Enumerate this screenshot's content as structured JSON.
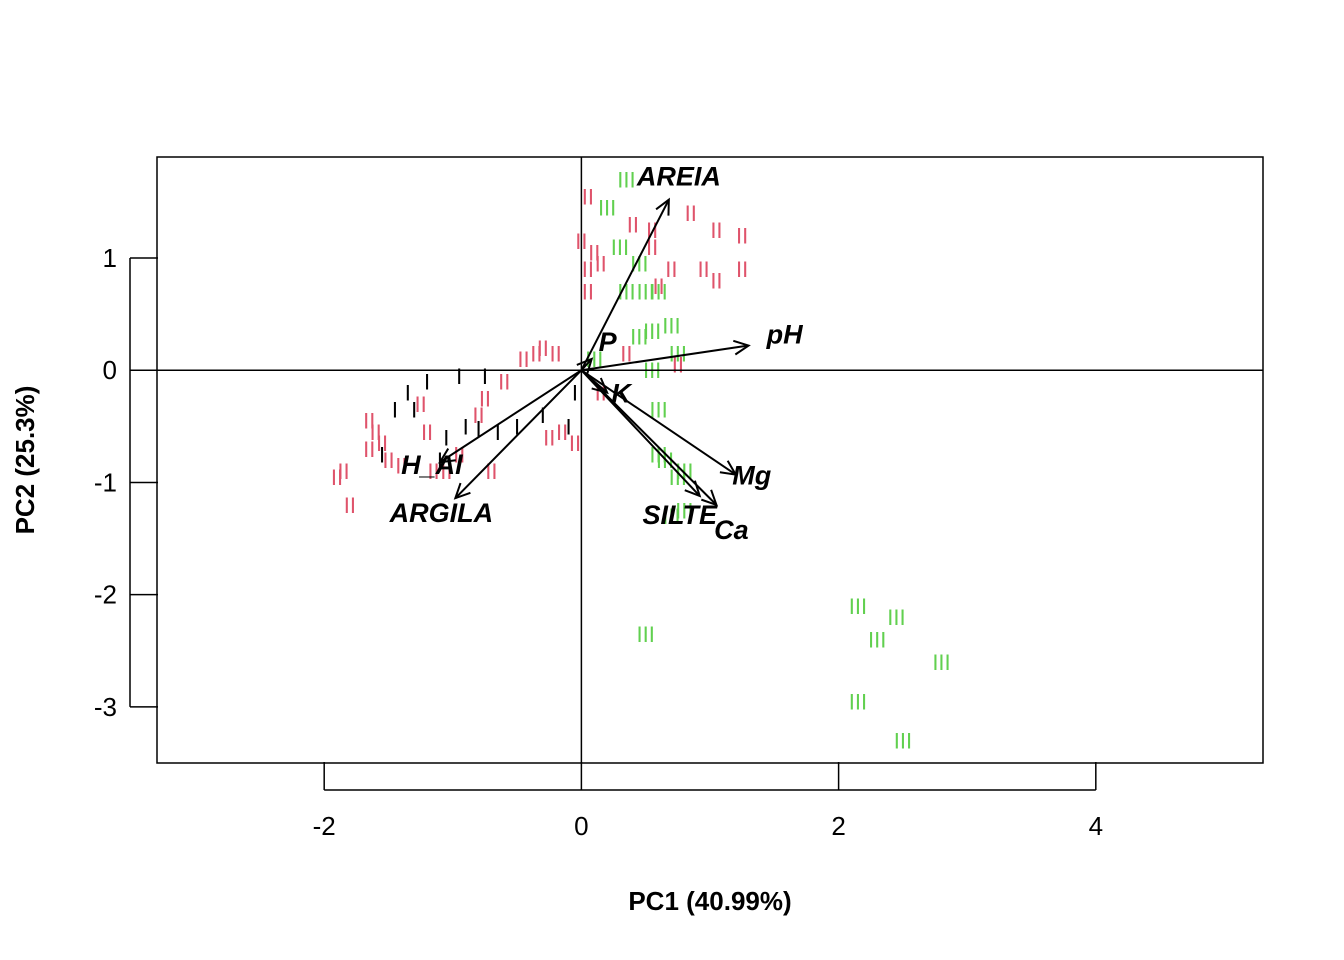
{
  "chart_data": {
    "type": "scatter",
    "subtype": "pca-biplot",
    "title": "",
    "xlabel": "PC1 (40.99%)",
    "ylabel": "PC2 (25.3%)",
    "xlim": [
      -3.3,
      5.3
    ],
    "ylim": [
      -3.5,
      1.9
    ],
    "xticks": [
      -2,
      0,
      2,
      4
    ],
    "yticks": [
      -3,
      -2,
      -1,
      0,
      1
    ],
    "grid": false,
    "reference_lines": {
      "x": 0,
      "y": 0
    },
    "groups": [
      {
        "label": "I",
        "color": "#000000",
        "points": [
          [
            -1.45,
            -0.35
          ],
          [
            -1.35,
            -0.2
          ],
          [
            -1.3,
            -0.35
          ],
          [
            -1.2,
            -0.1
          ],
          [
            -1.05,
            -0.6
          ],
          [
            -0.95,
            -0.05
          ],
          [
            -0.9,
            -0.5
          ],
          [
            -0.8,
            -0.52
          ],
          [
            -0.75,
            -0.05
          ],
          [
            -0.65,
            -0.55
          ],
          [
            -0.5,
            -0.5
          ],
          [
            -0.3,
            -0.4
          ],
          [
            -0.1,
            -0.5
          ],
          [
            -0.05,
            -0.2
          ],
          [
            -1.55,
            -0.75
          ],
          [
            -1.1,
            -0.8
          ]
        ]
      },
      {
        "label": "II",
        "color": "#df536b",
        "points": [
          [
            -1.9,
            -0.95
          ],
          [
            -1.8,
            -1.2
          ],
          [
            -1.85,
            -0.9
          ],
          [
            -1.65,
            -0.45
          ],
          [
            -1.65,
            -0.7
          ],
          [
            -1.6,
            -0.55
          ],
          [
            -1.55,
            -0.65
          ],
          [
            -1.5,
            -0.8
          ],
          [
            -1.4,
            -0.85
          ],
          [
            -1.25,
            -0.3
          ],
          [
            -1.2,
            -0.55
          ],
          [
            -1.15,
            -0.9
          ],
          [
            -1.05,
            -0.9
          ],
          [
            -0.95,
            -0.75
          ],
          [
            -0.8,
            -0.4
          ],
          [
            -0.75,
            -0.25
          ],
          [
            -0.6,
            -0.1
          ],
          [
            -0.45,
            0.1
          ],
          [
            -0.35,
            0.15
          ],
          [
            -0.3,
            0.2
          ],
          [
            -0.25,
            -0.6
          ],
          [
            -0.15,
            -0.55
          ],
          [
            -0.05,
            -0.65
          ],
          [
            -0.2,
            0.15
          ],
          [
            0.05,
            1.55
          ],
          [
            0.0,
            1.15
          ],
          [
            0.05,
            0.9
          ],
          [
            0.1,
            1.05
          ],
          [
            0.05,
            0.7
          ],
          [
            0.15,
            0.95
          ],
          [
            0.35,
            0.15
          ],
          [
            0.4,
            1.3
          ],
          [
            0.55,
            1.25
          ],
          [
            0.55,
            1.1
          ],
          [
            0.6,
            0.75
          ],
          [
            0.7,
            0.9
          ],
          [
            0.75,
            0.05
          ],
          [
            0.85,
            1.4
          ],
          [
            0.95,
            0.9
          ],
          [
            1.05,
            0.8
          ],
          [
            1.05,
            1.25
          ],
          [
            1.25,
            1.2
          ],
          [
            1.25,
            0.9
          ],
          [
            0.15,
            -0.2
          ],
          [
            -0.7,
            -0.9
          ]
        ]
      },
      {
        "label": "III",
        "color": "#61d04f",
        "points": [
          [
            0.35,
            1.7
          ],
          [
            0.2,
            1.45
          ],
          [
            0.3,
            1.1
          ],
          [
            0.35,
            0.7
          ],
          [
            0.45,
            0.95
          ],
          [
            0.5,
            0.7
          ],
          [
            0.55,
            0.35
          ],
          [
            0.55,
            0.0
          ],
          [
            0.6,
            0.7
          ],
          [
            0.7,
            0.4
          ],
          [
            0.75,
            0.15
          ],
          [
            0.6,
            -0.35
          ],
          [
            0.6,
            -0.75
          ],
          [
            0.65,
            -0.8
          ],
          [
            0.75,
            -0.95
          ],
          [
            0.7,
            -1.3
          ],
          [
            0.8,
            -1.25
          ],
          [
            0.8,
            -0.9
          ],
          [
            0.1,
            0.1
          ],
          [
            0.45,
            0.3
          ],
          [
            0.5,
            -2.35
          ],
          [
            2.15,
            -2.1
          ],
          [
            2.45,
            -2.2
          ],
          [
            2.3,
            -2.4
          ],
          [
            2.8,
            -2.6
          ],
          [
            2.15,
            -2.95
          ],
          [
            2.5,
            -3.3
          ]
        ]
      }
    ],
    "loadings": [
      {
        "name": "AREIA",
        "x": 0.68,
        "y": 1.52
      },
      {
        "name": "pH",
        "x": 1.3,
        "y": 0.22
      },
      {
        "name": "P",
        "x": 0.08,
        "y": 0.1
      },
      {
        "name": "K",
        "x": 0.2,
        "y": -0.2
      },
      {
        "name": "Mg",
        "x": 1.2,
        "y": -0.93
      },
      {
        "name": "SILTE",
        "x": 0.92,
        "y": -1.12
      },
      {
        "name": "Ca",
        "x": 1.05,
        "y": -1.2
      },
      {
        "name": "H_Al",
        "x": -1.1,
        "y": -0.82
      },
      {
        "name": "ARGILA",
        "x": -0.98,
        "y": -1.14
      }
    ]
  }
}
